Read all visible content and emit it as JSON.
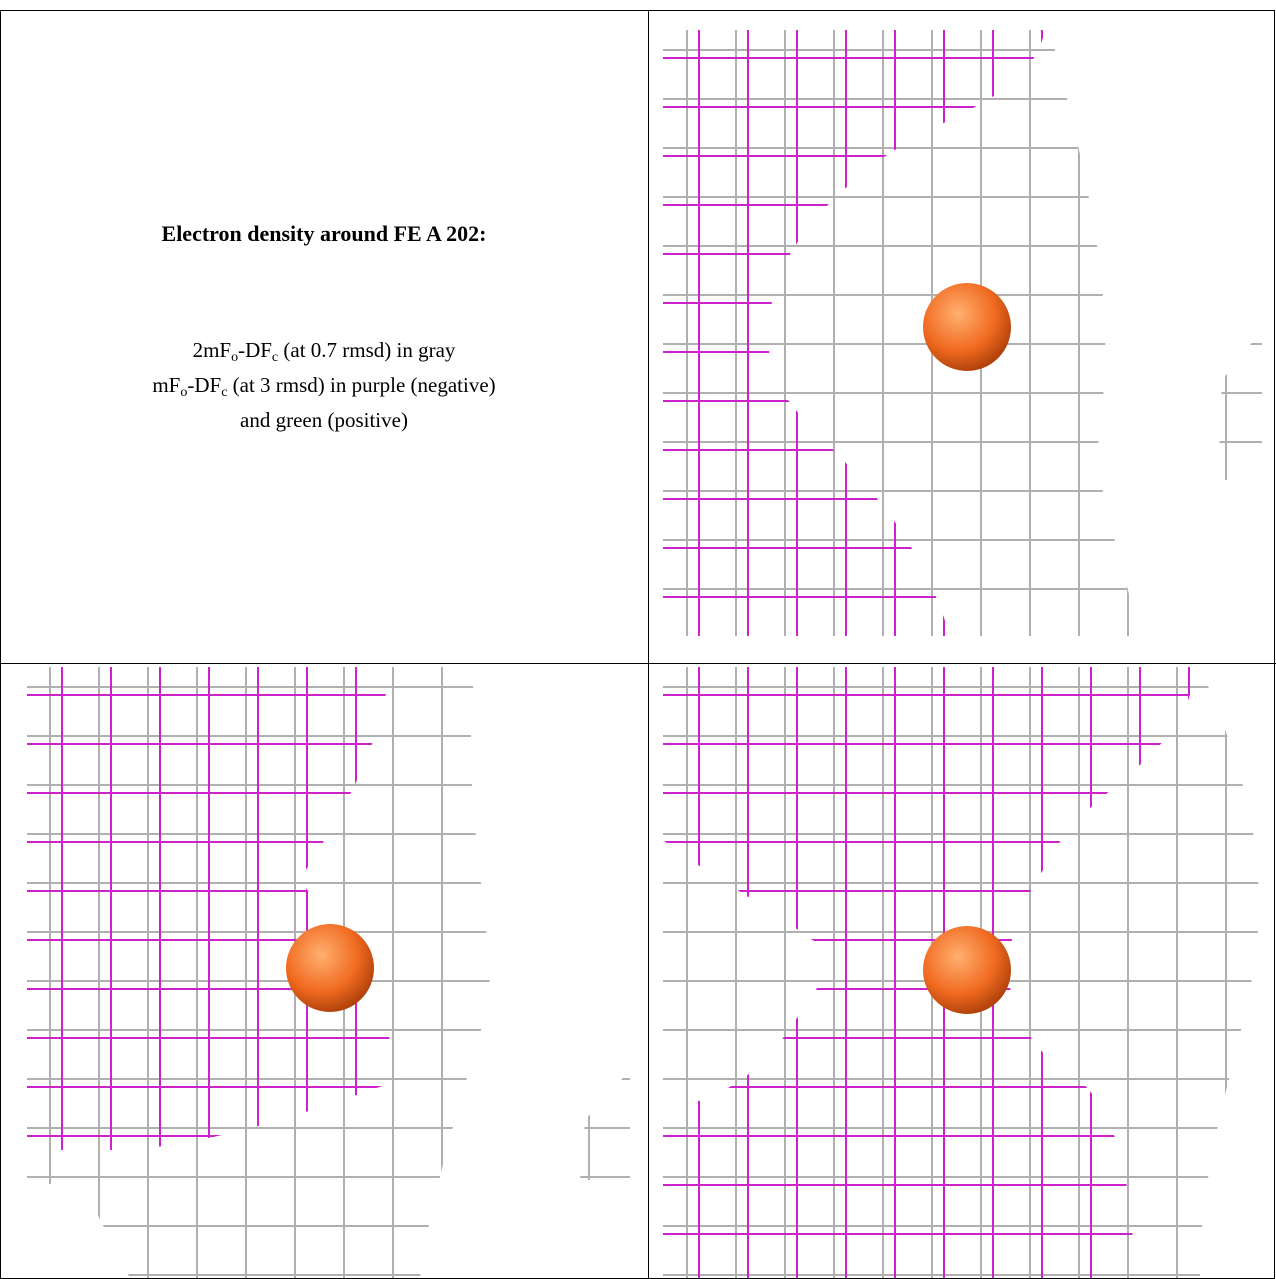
{
  "title": "Electron density around FE A 202:",
  "description": [
    [
      "2mF",
      "o",
      "-DF",
      "c",
      " (at 0.7 rmsd) in gray"
    ],
    [
      "mF",
      "o",
      "-DF",
      "c",
      " (at 3 rmsd) in purple (negative)"
    ],
    [
      "and green (positive)"
    ]
  ]
}
